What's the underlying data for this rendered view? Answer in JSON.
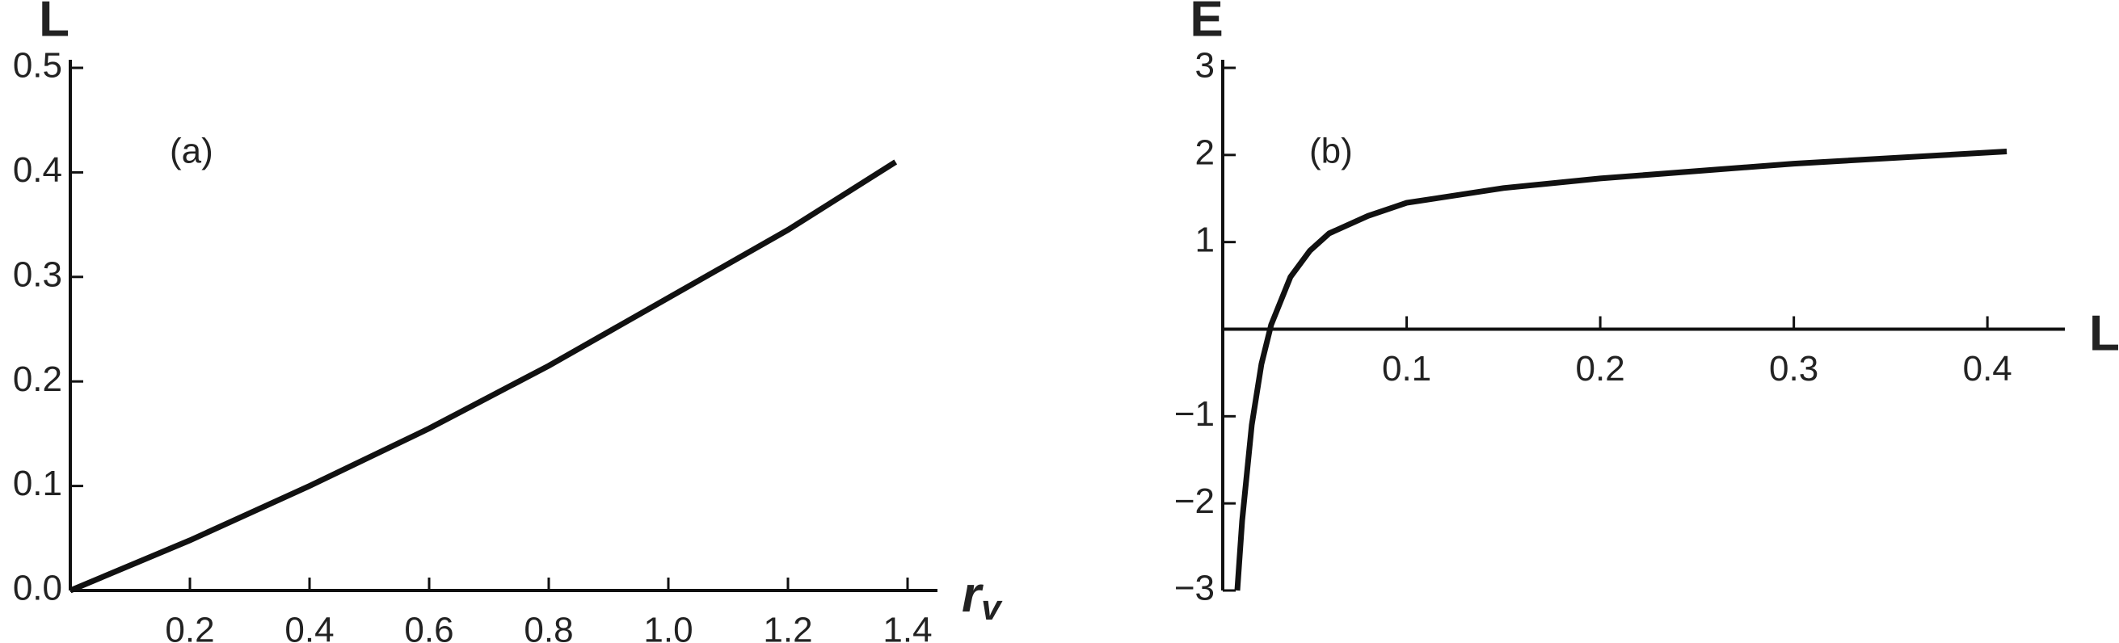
{
  "chart_data": [
    {
      "type": "line",
      "annotation": "(a)",
      "y_label": "L",
      "x_label": "r",
      "x_label_subscript": "v",
      "x": [
        0,
        0.2,
        0.4,
        0.6,
        0.8,
        1.0,
        1.2,
        1.38
      ],
      "values": [
        0,
        0.048,
        0.1,
        0.155,
        0.215,
        0.28,
        0.345,
        0.41
      ],
      "color": "#111111",
      "xlim": [
        0,
        1.45
      ],
      "ylim": [
        0,
        0.5
      ],
      "xticks": [
        0.2,
        0.4,
        0.6,
        0.8,
        {
          "value": 1.0,
          "label": "1.0"
        },
        1.2,
        1.4
      ],
      "yticks": [
        {
          "value": 0,
          "label": "0.0"
        },
        0.1,
        0.2,
        0.3,
        0.4,
        0.5
      ]
    },
    {
      "type": "line",
      "annotation": "(b)",
      "y_label": "E",
      "x_label": "L",
      "x": [
        0.0125,
        0.015,
        0.02,
        0.025,
        0.03,
        0.04,
        0.05,
        0.06,
        0.08,
        0.1,
        0.15,
        0.2,
        0.3,
        0.41
      ],
      "values": [
        -3,
        -2.2,
        -1.1,
        -0.4,
        0.05,
        0.6,
        0.9,
        1.1,
        1.3,
        1.45,
        1.62,
        1.73,
        1.9,
        2.04
      ],
      "color": "#111111",
      "xlim": [
        0.005,
        0.44
      ],
      "ylim": [
        -3,
        3
      ],
      "xticks": [
        0.1,
        0.2,
        0.3,
        0.4
      ],
      "yticks": [
        {
          "value": -3,
          "label": "−3"
        },
        {
          "value": -2,
          "label": "−2"
        },
        {
          "value": -1,
          "label": "−1"
        },
        1,
        2,
        3
      ]
    }
  ]
}
